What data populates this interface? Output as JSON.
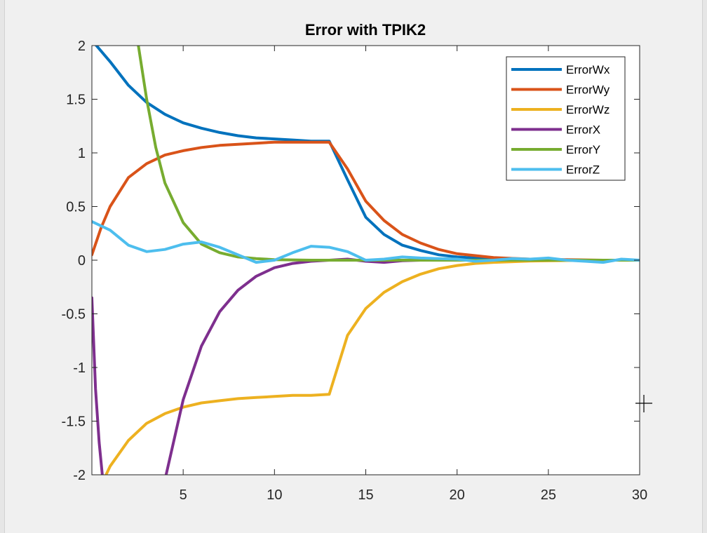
{
  "window": {
    "background": "#f0f0f0",
    "plot_background": "#ffffff"
  },
  "chart_data": {
    "type": "line",
    "title": "Error with TPIK2",
    "xlabel": "",
    "ylabel": "",
    "xlim": [
      0,
      30
    ],
    "ylim": [
      -2,
      2
    ],
    "x_ticks": [
      5,
      10,
      15,
      20,
      25,
      30
    ],
    "y_ticks": [
      2,
      1.5,
      1,
      0.5,
      0,
      -0.5,
      -1,
      -1.5,
      -2
    ],
    "x_tick_labels": [
      "5",
      "10",
      "15",
      "20",
      "25",
      "30"
    ],
    "y_tick_labels": [
      "2",
      "1.5",
      "1",
      "0.5",
      "0",
      "-0.5",
      "-1",
      "-1.5",
      "-2"
    ],
    "grid": false,
    "legend_position": "top-right",
    "series": [
      {
        "name": "ErrorWx",
        "color": "#0072BD",
        "x": [
          0,
          1,
          2,
          3,
          4,
          5,
          6,
          7,
          8,
          9,
          10,
          11,
          12,
          13,
          14,
          15,
          16,
          17,
          18,
          19,
          20,
          22,
          24,
          26,
          28,
          30
        ],
        "y": [
          2.05,
          1.85,
          1.63,
          1.47,
          1.36,
          1.28,
          1.23,
          1.19,
          1.16,
          1.14,
          1.13,
          1.12,
          1.11,
          1.11,
          0.75,
          0.4,
          0.24,
          0.14,
          0.09,
          0.05,
          0.03,
          0.01,
          0.005,
          0.0,
          0.0,
          0.0
        ]
      },
      {
        "name": "ErrorWy",
        "color": "#D95319",
        "x": [
          0,
          0.5,
          1,
          2,
          3,
          4,
          5,
          6,
          7,
          8,
          9,
          10,
          11,
          12,
          13,
          14,
          15,
          16,
          17,
          18,
          19,
          20,
          22,
          24,
          26,
          28,
          30
        ],
        "y": [
          0.05,
          0.3,
          0.5,
          0.77,
          0.9,
          0.98,
          1.02,
          1.05,
          1.07,
          1.08,
          1.09,
          1.1,
          1.1,
          1.1,
          1.1,
          0.85,
          0.55,
          0.37,
          0.24,
          0.16,
          0.1,
          0.06,
          0.025,
          0.01,
          0.005,
          0.0,
          0.0
        ]
      },
      {
        "name": "ErrorWz",
        "color": "#EDB120",
        "x": [
          0.5,
          1,
          2,
          3,
          4,
          5,
          6,
          7,
          8,
          9,
          10,
          11,
          12,
          13,
          14,
          15,
          16,
          17,
          18,
          19,
          20,
          21,
          22,
          24,
          26,
          28,
          30
        ],
        "y": [
          -2.1,
          -1.92,
          -1.68,
          -1.52,
          -1.43,
          -1.37,
          -1.33,
          -1.31,
          -1.29,
          -1.28,
          -1.27,
          -1.26,
          -1.26,
          -1.25,
          -0.7,
          -0.45,
          -0.3,
          -0.2,
          -0.13,
          -0.08,
          -0.05,
          -0.03,
          -0.02,
          -0.008,
          -0.003,
          0.0,
          0.0
        ]
      },
      {
        "name": "ErrorX",
        "color": "#7E2F8E",
        "x": [
          4,
          5,
          6,
          7,
          8,
          9,
          10,
          11,
          12,
          13,
          14,
          15,
          16,
          17,
          18,
          20,
          25,
          30
        ],
        "y": [
          -2.05,
          -1.3,
          -0.8,
          -0.48,
          -0.28,
          -0.15,
          -0.07,
          -0.03,
          -0.01,
          0.0,
          0.01,
          -0.01,
          -0.02,
          -0.005,
          0.0,
          0.0,
          0.0,
          0.0
        ]
      },
      {
        "name": "ErrorY",
        "color": "#77AC30",
        "x": [
          2.5,
          3,
          3.5,
          4,
          5,
          6,
          7,
          8,
          9,
          10,
          12,
          14,
          16,
          20,
          25,
          30
        ],
        "y": [
          2.05,
          1.5,
          1.05,
          0.72,
          0.35,
          0.15,
          0.07,
          0.03,
          0.015,
          0.005,
          0.0,
          0.0,
          0.0,
          0.0,
          0.0,
          0.0
        ]
      },
      {
        "name": "ErrorZ",
        "color": "#4DBEEE",
        "x": [
          0,
          1,
          2,
          3,
          4,
          5,
          6,
          7,
          8,
          9,
          10,
          11,
          12,
          13,
          14,
          15,
          16,
          17,
          18,
          19,
          20,
          21,
          22,
          23,
          24,
          25,
          26,
          27,
          28,
          29,
          30
        ],
        "y": [
          0.36,
          0.28,
          0.14,
          0.08,
          0.1,
          0.15,
          0.17,
          0.12,
          0.05,
          -0.02,
          0.0,
          0.07,
          0.13,
          0.12,
          0.08,
          0.0,
          0.01,
          0.03,
          0.02,
          0.015,
          0.01,
          -0.01,
          0.0,
          0.015,
          0.01,
          0.02,
          0.0,
          -0.01,
          -0.02,
          0.01,
          0.0
        ]
      },
      {
        "name": "",
        "color": "#7E2F8E",
        "legend": false,
        "x": [
          0,
          0.2,
          0.4,
          0.6
        ],
        "y": [
          -0.35,
          -1.2,
          -1.7,
          -2.05
        ]
      }
    ]
  }
}
